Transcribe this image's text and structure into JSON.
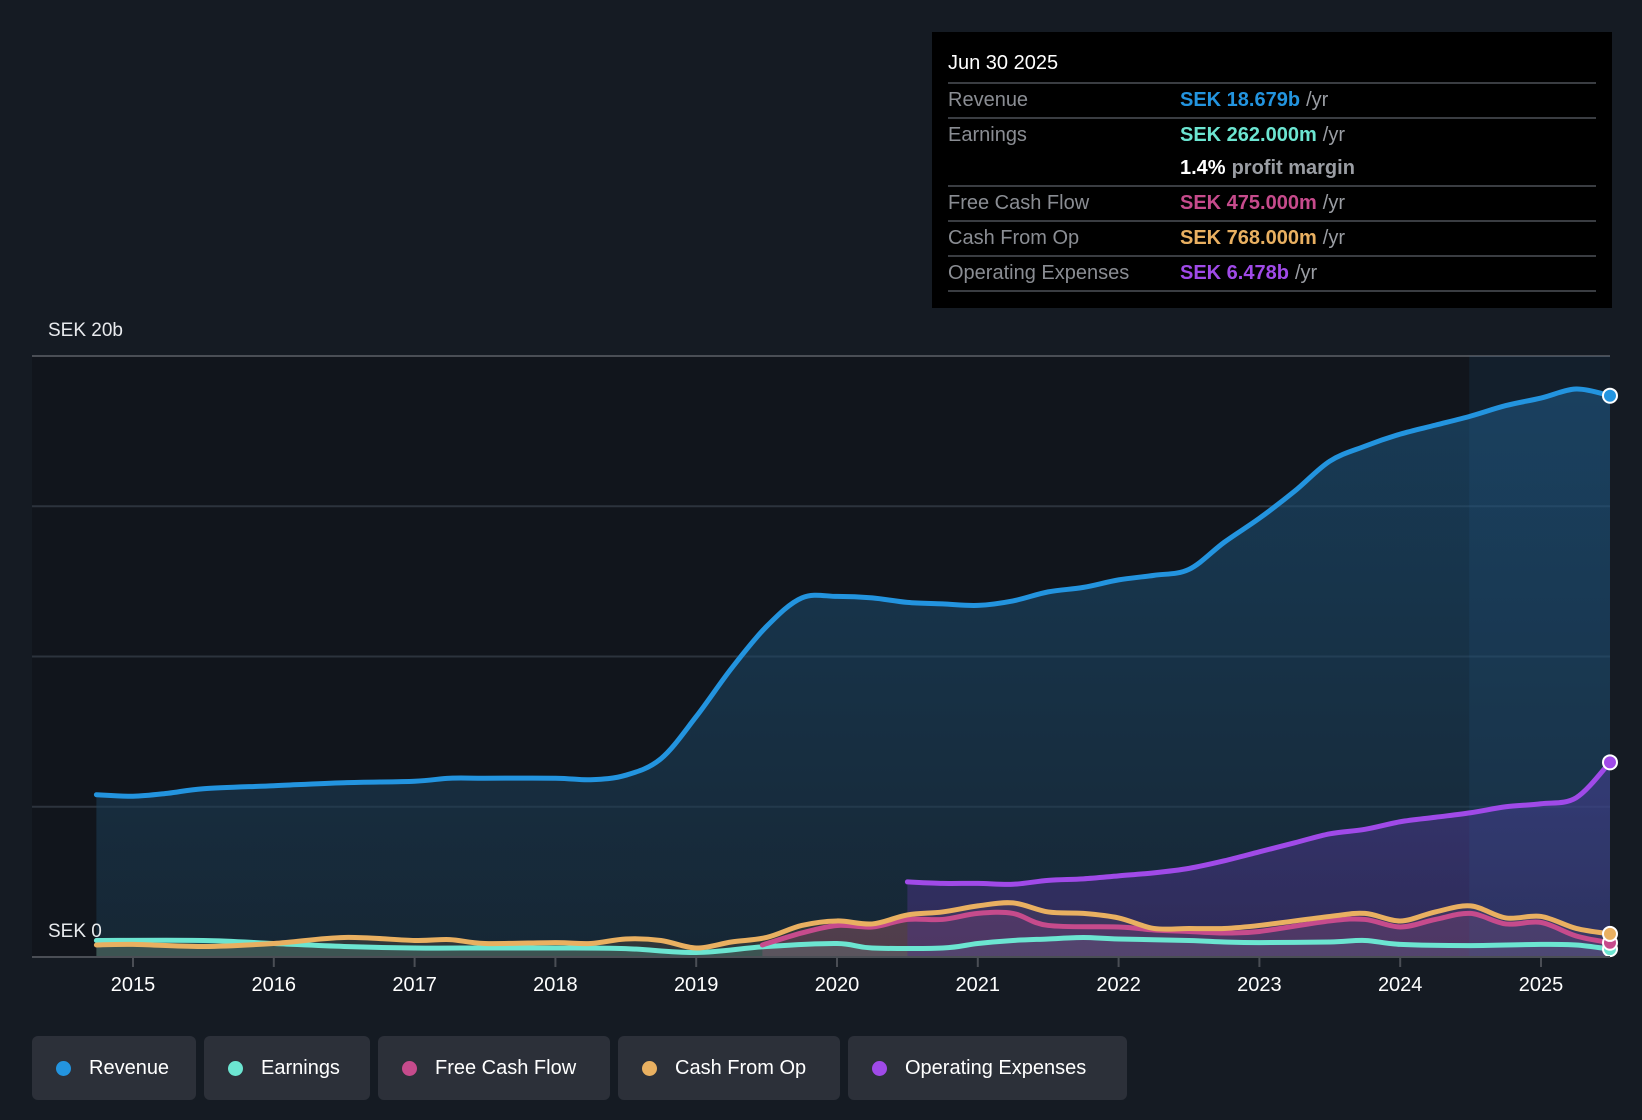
{
  "tooltip": {
    "date": "Jun 30 2025",
    "rows": [
      {
        "label": "Revenue",
        "value": "SEK 18.679b",
        "unit": "/yr",
        "color": "#2394df"
      },
      {
        "label": "Earnings",
        "value": "SEK 262.000m",
        "unit": "/yr",
        "color": "#6ce5d1"
      },
      {
        "label": "Free Cash Flow",
        "value": "SEK 475.000m",
        "unit": "/yr",
        "color": "#c64b8c"
      },
      {
        "label": "Cash From Op",
        "value": "SEK 768.000m",
        "unit": "/yr",
        "color": "#e9b061"
      },
      {
        "label": "Operating Expenses",
        "value": "SEK 6.478b",
        "unit": "/yr",
        "color": "#a04ae8"
      }
    ],
    "profit_margin_value": "1.4%",
    "profit_margin_text": "profit margin"
  },
  "legend": [
    {
      "label": "Revenue",
      "color": "#2394df"
    },
    {
      "label": "Earnings",
      "color": "#6ce5d1"
    },
    {
      "label": "Free Cash Flow",
      "color": "#c64b8c"
    },
    {
      "label": "Cash From Op",
      "color": "#e9b061"
    },
    {
      "label": "Operating Expenses",
      "color": "#a04ae8"
    }
  ],
  "chart_data": {
    "type": "area",
    "title": "",
    "xlabel": "",
    "ylabel": "",
    "y_unit": "SEK billions",
    "ylim": [
      0,
      20
    ],
    "y_tick_labels": [
      "SEK 0",
      "SEK 20b"
    ],
    "gridlines_at": [
      0,
      5,
      10,
      15,
      20
    ],
    "xlim": [
      2014.74,
      2025.49
    ],
    "x_tick_labels": [
      "2015",
      "2016",
      "2017",
      "2018",
      "2019",
      "2020",
      "2021",
      "2022",
      "2023",
      "2024",
      "2025"
    ],
    "x_ticks": [
      2015,
      2016,
      2017,
      2018,
      2019,
      2020,
      2021,
      2022,
      2023,
      2024,
      2025
    ],
    "highlight_from": 2024.49,
    "series": [
      {
        "name": "Revenue",
        "color": "#2394df",
        "x": [
          2014.74,
          2015.0,
          2015.25,
          2015.5,
          2016.0,
          2016.5,
          2017.0,
          2017.25,
          2017.5,
          2018.0,
          2018.25,
          2018.5,
          2018.75,
          2019.0,
          2019.25,
          2019.5,
          2019.75,
          2020.0,
          2020.25,
          2020.5,
          2020.75,
          2021.0,
          2021.25,
          2021.5,
          2021.75,
          2022.0,
          2022.25,
          2022.5,
          2022.75,
          2023.0,
          2023.25,
          2023.5,
          2023.75,
          2024.0,
          2024.25,
          2024.5,
          2024.75,
          2025.0,
          2025.25,
          2025.49
        ],
        "values": [
          5.4,
          5.35,
          5.45,
          5.6,
          5.7,
          5.8,
          5.85,
          5.95,
          5.95,
          5.95,
          5.9,
          6.05,
          6.6,
          8.0,
          9.6,
          11.0,
          11.95,
          12.0,
          11.95,
          11.8,
          11.75,
          11.7,
          11.85,
          12.15,
          12.3,
          12.55,
          12.7,
          12.9,
          13.8,
          14.6,
          15.5,
          16.5,
          17.0,
          17.4,
          17.7,
          18.0,
          18.35,
          18.6,
          18.9,
          18.679
        ]
      },
      {
        "name": "Earnings",
        "color": "#6ce5d1",
        "x": [
          2014.74,
          2015.5,
          2016.0,
          2016.5,
          2017.0,
          2017.5,
          2018.0,
          2018.5,
          2019.0,
          2019.5,
          2020.0,
          2020.25,
          2020.75,
          2021.0,
          2021.25,
          2021.5,
          2021.75,
          2022.0,
          2022.5,
          2022.75,
          2023.0,
          2023.5,
          2023.75,
          2024.0,
          2024.5,
          2025.0,
          2025.25,
          2025.49
        ],
        "values": [
          0.55,
          0.55,
          0.45,
          0.35,
          0.3,
          0.3,
          0.3,
          0.28,
          0.15,
          0.35,
          0.45,
          0.3,
          0.3,
          0.45,
          0.55,
          0.6,
          0.65,
          0.6,
          0.55,
          0.5,
          0.48,
          0.5,
          0.55,
          0.42,
          0.38,
          0.42,
          0.4,
          0.262
        ]
      },
      {
        "name": "Free Cash Flow",
        "color": "#c64b8c",
        "x": [
          2019.47,
          2019.75,
          2020.0,
          2020.25,
          2020.5,
          2020.75,
          2021.0,
          2021.25,
          2021.5,
          2022.0,
          2022.25,
          2022.5,
          2022.75,
          2023.0,
          2023.5,
          2023.75,
          2024.0,
          2024.25,
          2024.5,
          2024.75,
          2025.0,
          2025.25,
          2025.49
        ],
        "values": [
          0.4,
          0.8,
          1.05,
          1.0,
          1.25,
          1.25,
          1.45,
          1.45,
          1.05,
          1.0,
          0.9,
          0.85,
          0.8,
          0.85,
          1.2,
          1.25,
          1.0,
          1.25,
          1.45,
          1.1,
          1.15,
          0.7,
          0.475
        ]
      },
      {
        "name": "Cash From Op",
        "color": "#e9b061",
        "x": [
          2014.74,
          2015.0,
          2015.5,
          2016.0,
          2016.5,
          2017.0,
          2017.25,
          2017.5,
          2018.0,
          2018.25,
          2018.5,
          2018.75,
          2019.0,
          2019.25,
          2019.5,
          2019.75,
          2020.0,
          2020.25,
          2020.5,
          2020.75,
          2021.0,
          2021.25,
          2021.5,
          2021.75,
          2022.0,
          2022.25,
          2022.5,
          2022.75,
          2023.0,
          2023.5,
          2023.75,
          2024.0,
          2024.25,
          2024.5,
          2024.75,
          2025.0,
          2025.25,
          2025.49
        ],
        "values": [
          0.4,
          0.42,
          0.35,
          0.45,
          0.65,
          0.55,
          0.58,
          0.45,
          0.48,
          0.45,
          0.6,
          0.55,
          0.3,
          0.5,
          0.65,
          1.05,
          1.2,
          1.1,
          1.4,
          1.5,
          1.7,
          1.8,
          1.5,
          1.45,
          1.3,
          0.95,
          0.95,
          0.95,
          1.05,
          1.35,
          1.45,
          1.2,
          1.5,
          1.7,
          1.3,
          1.35,
          0.95,
          0.768
        ]
      },
      {
        "name": "Operating Expenses",
        "color": "#a04ae8",
        "x": [
          2020.5,
          2020.75,
          2021.0,
          2021.25,
          2021.5,
          2021.75,
          2022.0,
          2022.25,
          2022.5,
          2022.75,
          2023.0,
          2023.25,
          2023.5,
          2023.75,
          2024.0,
          2024.25,
          2024.5,
          2024.75,
          2025.0,
          2025.25,
          2025.49
        ],
        "values": [
          2.5,
          2.45,
          2.45,
          2.42,
          2.55,
          2.6,
          2.7,
          2.8,
          2.95,
          3.2,
          3.5,
          3.8,
          4.1,
          4.25,
          4.5,
          4.65,
          4.8,
          5.0,
          5.1,
          5.3,
          6.478
        ]
      }
    ]
  }
}
